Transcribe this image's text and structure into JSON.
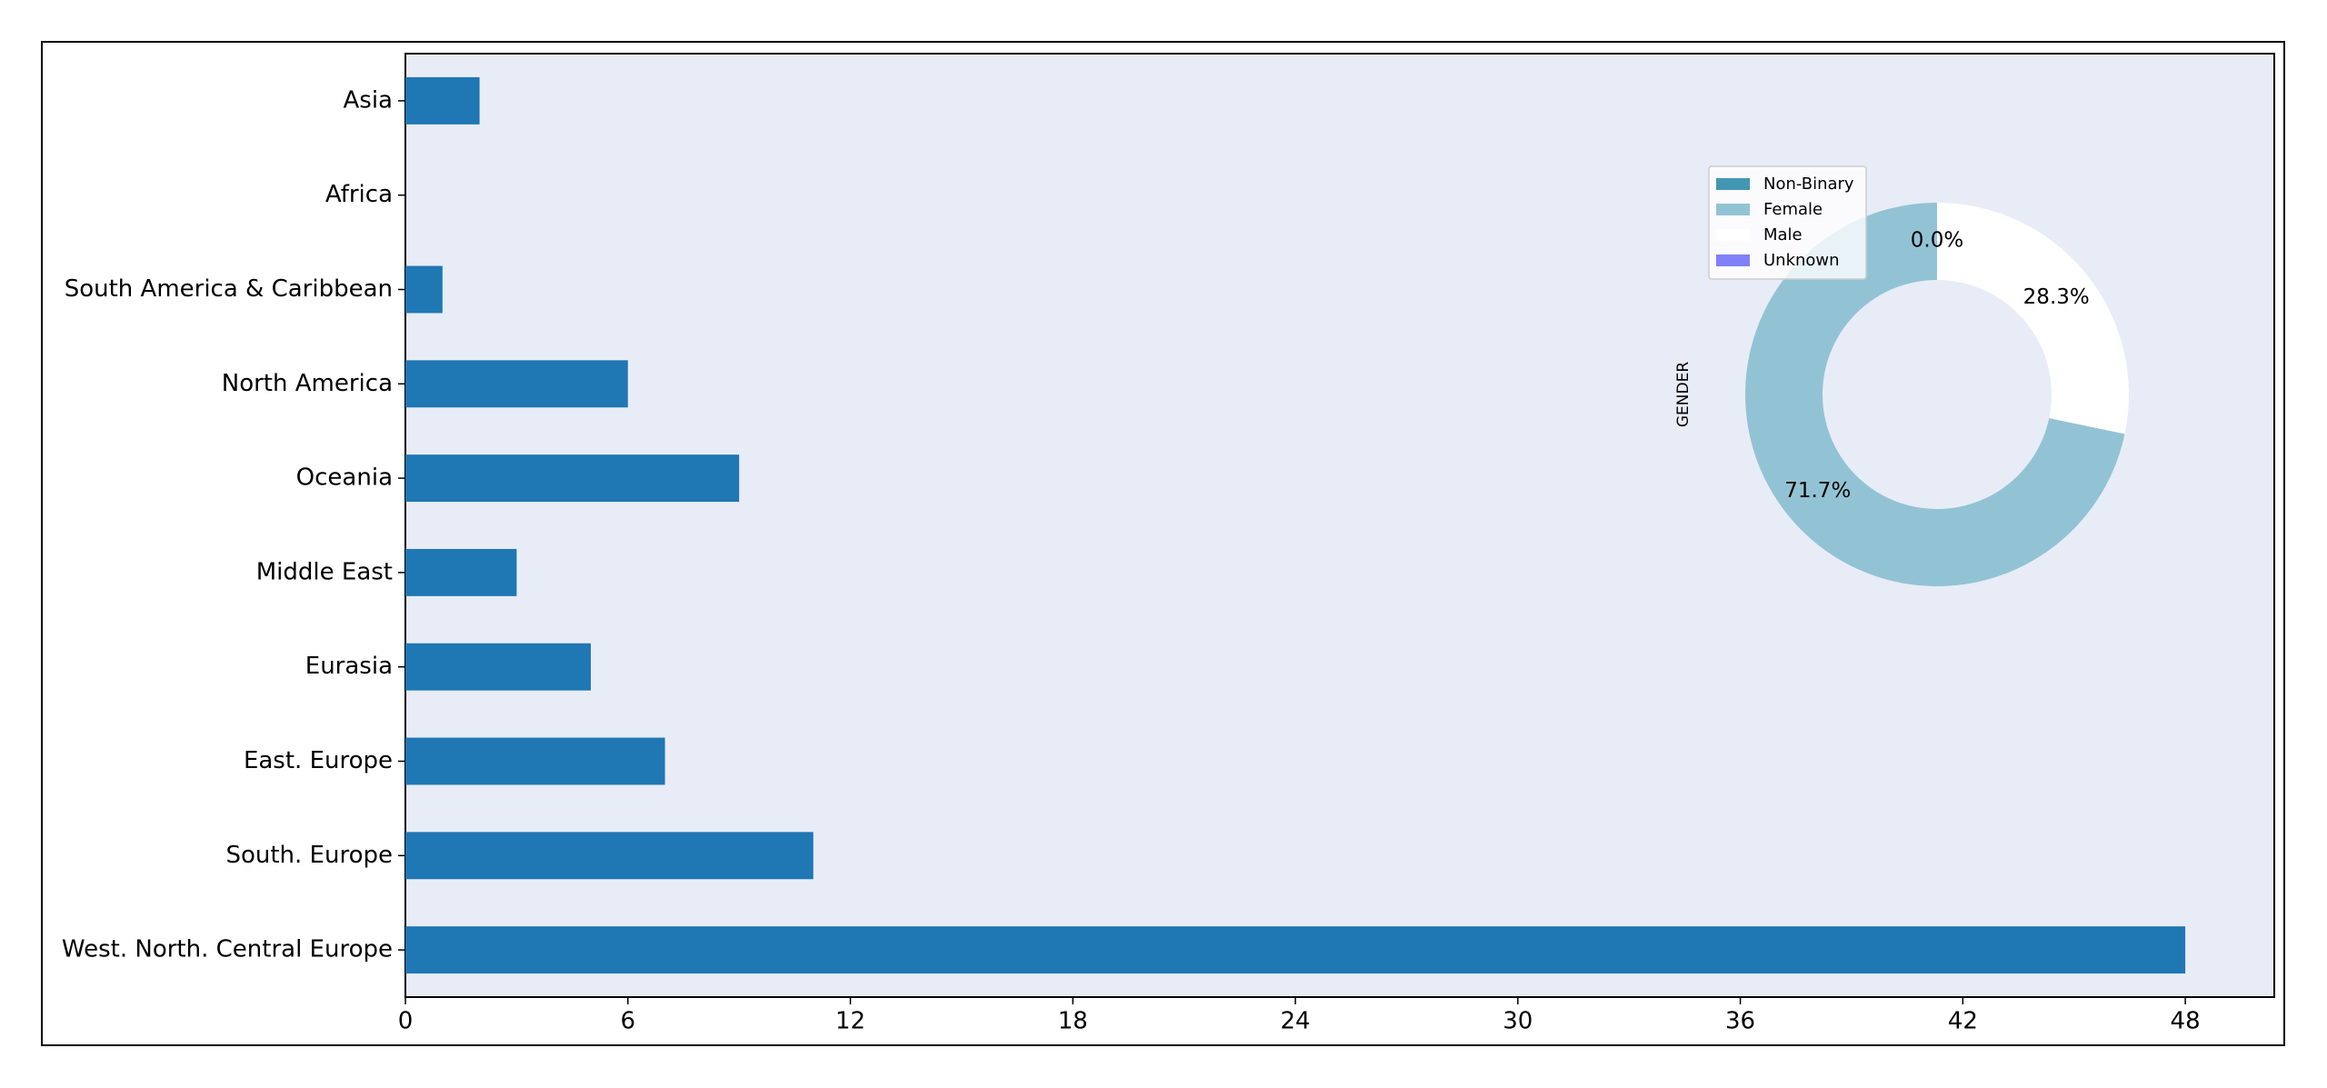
{
  "chart_data": [
    {
      "type": "barh",
      "categories": [
        "Asia",
        "Africa",
        "South America & Caribbean",
        "North America",
        "Oceania",
        "Middle East",
        "Eurasia",
        "East. Europe",
        "South. Europe",
        "West. North. Central Europe"
      ],
      "values": [
        2,
        0,
        1,
        6,
        9,
        3,
        5,
        7,
        11,
        48
      ],
      "color": "#1f77b4",
      "xlim": [
        0,
        50.4
      ],
      "xticks": [
        0,
        6,
        12,
        18,
        24,
        30,
        36,
        42,
        48
      ]
    },
    {
      "type": "pie",
      "ylabel": "GENDER",
      "categories": [
        "Non-Binary",
        "Female",
        "Male",
        "Unknown"
      ],
      "values": [
        0,
        71.7,
        28.3,
        0
      ],
      "value_labels": [
        "0.0%",
        "71.7%",
        "28.3%",
        "0.0%"
      ],
      "colors": [
        "#4396b2",
        "#92c3d4",
        "#ffffff",
        "#8080f8"
      ]
    }
  ]
}
